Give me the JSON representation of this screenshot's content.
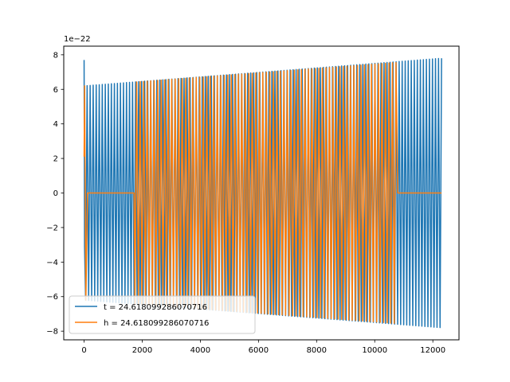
{
  "chart_data": {
    "type": "line",
    "title": "",
    "xlabel": "",
    "ylabel": "",
    "y_offset_label": "1e−22",
    "y_scale": 1e-22,
    "xlim": [
      -700,
      12900
    ],
    "ylim": [
      -8.5,
      8.5
    ],
    "x_ticks": [
      0,
      2000,
      4000,
      6000,
      8000,
      10000,
      12000
    ],
    "x_tick_labels": [
      "0",
      "2000",
      "4000",
      "6000",
      "8000",
      "10000",
      "12000"
    ],
    "y_ticks": [
      -8,
      -6,
      -4,
      -2,
      0,
      2,
      4,
      6,
      8
    ],
    "y_tick_labels": [
      "−8",
      "−6",
      "−4",
      "−2",
      "0",
      "2",
      "4",
      "6",
      "8"
    ],
    "grid": false,
    "legend_position": "lower-left",
    "series": [
      {
        "name": "t = 24.618099286070716",
        "color": "#1f77b4",
        "x_range": [
          0,
          12300
        ],
        "num_cycles": 118,
        "amplitude_start": 6.2,
        "amplitude_end": 7.8,
        "initial_spike": [
          7.7,
          -3.1
        ],
        "gaps": []
      },
      {
        "name": "h = 24.618099286070716",
        "color": "#ff7f0e",
        "x_range": [
          0,
          12300
        ],
        "num_cycles": 102,
        "amplitude_start": 6.2,
        "amplitude_end": 7.75,
        "initial_spike": [
          2.1,
          6.2
        ],
        "gaps": [
          [
            100,
            1720
          ],
          [
            10750,
            12300
          ]
        ]
      }
    ]
  }
}
